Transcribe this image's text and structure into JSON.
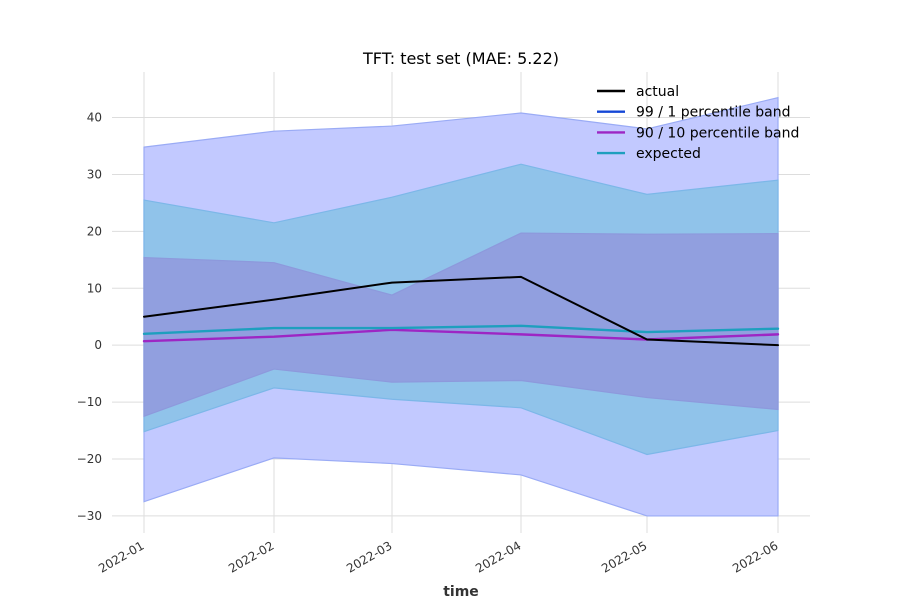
{
  "chart_data": {
    "type": "line",
    "title": "TFT: test set (MAE: 5.22)",
    "xlabel": "time",
    "ylabel": "",
    "x": [
      "2022-01",
      "2022-02",
      "2022-03",
      "2022-04",
      "2022-05",
      "2022-06"
    ],
    "ylim": [
      -33,
      48
    ],
    "yticks": [
      -30,
      -20,
      -10,
      0,
      10,
      20,
      30,
      40
    ],
    "ytick_labels": [
      "−30",
      "−20",
      "−10",
      "0",
      "10",
      "20",
      "30",
      "40"
    ],
    "grid": true,
    "legend_position": "top-right",
    "bands": [
      {
        "id": "band99",
        "upper": [
          34.8,
          37.6,
          38.5,
          40.8,
          38.0,
          43.5
        ],
        "lower": [
          -27.5,
          -19.8,
          -20.8,
          -22.8,
          -30.0,
          -30.0
        ],
        "color": "#c2c9ff",
        "edge": "#9aabf5"
      },
      {
        "id": "band_teal",
        "upper": [
          25.5,
          21.5,
          26.0,
          31.8,
          26.5,
          29.0
        ],
        "lower": [
          -15.2,
          -7.5,
          -9.5,
          -11.0,
          -19.2,
          -15.0
        ],
        "color": "#90c3ea",
        "edge": "#7cb7e8"
      },
      {
        "id": "band90",
        "upper": [
          15.4,
          14.5,
          8.8,
          19.7,
          19.5,
          19.6
        ],
        "lower": [
          -12.5,
          -4.2,
          -6.5,
          -6.2,
          -9.2,
          -11.3
        ],
        "color": "#919fdf",
        "edge": "#8d99dc"
      }
    ],
    "series": [
      {
        "id": "s_actual",
        "name": "actual",
        "values": [
          5.0,
          8.0,
          11.0,
          12.0,
          1.0,
          0.0
        ],
        "color": "#000000",
        "width": 2
      },
      {
        "id": "s_90",
        "name": "90 / 10 percentile band",
        "values": [
          0.7,
          1.5,
          2.7,
          1.9,
          1.0,
          1.9
        ],
        "color": "#9d26c4",
        "width": 2.4
      },
      {
        "id": "s_expected",
        "name": "expected",
        "values": [
          2.0,
          3.0,
          3.0,
          3.4,
          2.3,
          2.9
        ],
        "color": "#1e9fbe",
        "width": 2.4
      }
    ],
    "legend": [
      {
        "name": "actual",
        "color": "#000000"
      },
      {
        "name": "99 / 1 percentile band",
        "color": "#1547d6"
      },
      {
        "name": "90 / 10 percentile band",
        "color": "#9d26c4"
      },
      {
        "name": "expected",
        "color": "#1e9fbe"
      }
    ]
  }
}
